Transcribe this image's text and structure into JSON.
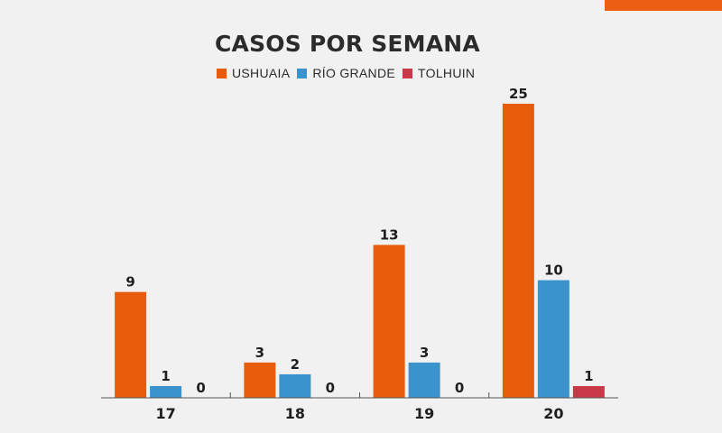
{
  "chart_data": {
    "type": "bar",
    "title": "CASOS POR SEMANA",
    "categories": [
      "17",
      "18",
      "19",
      "20"
    ],
    "series": [
      {
        "name": "USHUAIA",
        "values": [
          9,
          3,
          13,
          25
        ],
        "color": "#e85d0c"
      },
      {
        "name": "RÍO GRANDE",
        "values": [
          1,
          2,
          3,
          10
        ],
        "color": "#3a93cc"
      },
      {
        "name": "TOLHUIN",
        "values": [
          0,
          0,
          0,
          1
        ],
        "color": "#c93a48"
      }
    ],
    "ylim": [
      0,
      25
    ],
    "grid": false,
    "legend_position": "top"
  },
  "colors": {
    "accent": "#ec5f12",
    "axis": "#555555",
    "text": "#1e1e1e"
  }
}
